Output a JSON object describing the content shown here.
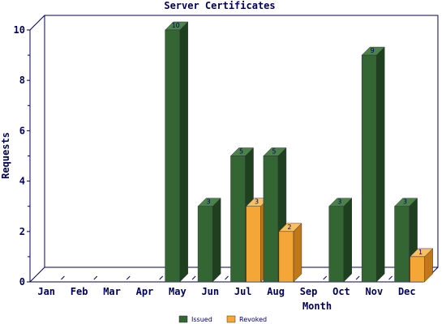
{
  "chart_data": {
    "type": "bar",
    "title": "Server Certificates",
    "xlabel": "Month",
    "ylabel": "Requests",
    "categories": [
      "Jan",
      "Feb",
      "Mar",
      "Apr",
      "May",
      "Jun",
      "Jul",
      "Aug",
      "Sep",
      "Oct",
      "Nov",
      "Dec"
    ],
    "series": [
      {
        "name": "Issued",
        "values": [
          0,
          0,
          0,
          0,
          10,
          3,
          5,
          5,
          0,
          3,
          9,
          3
        ]
      },
      {
        "name": "Revoked",
        "values": [
          0,
          0,
          0,
          0,
          0,
          0,
          3,
          2,
          0,
          0,
          0,
          1
        ]
      }
    ],
    "ylim": [
      0,
      10
    ],
    "yticks": [
      "0",
      "2",
      "4",
      "6",
      "8",
      "10"
    ],
    "grid": false,
    "legend_position": "bottom",
    "colors": {
      "issued_front": "#336633",
      "issued_top": "#4a824a",
      "issued_side": "#1e401e",
      "revoked_front": "#f4a636",
      "revoked_top": "#f8c060",
      "revoked_side": "#c07818",
      "text": "#00005a",
      "frame": "#00005a"
    }
  }
}
